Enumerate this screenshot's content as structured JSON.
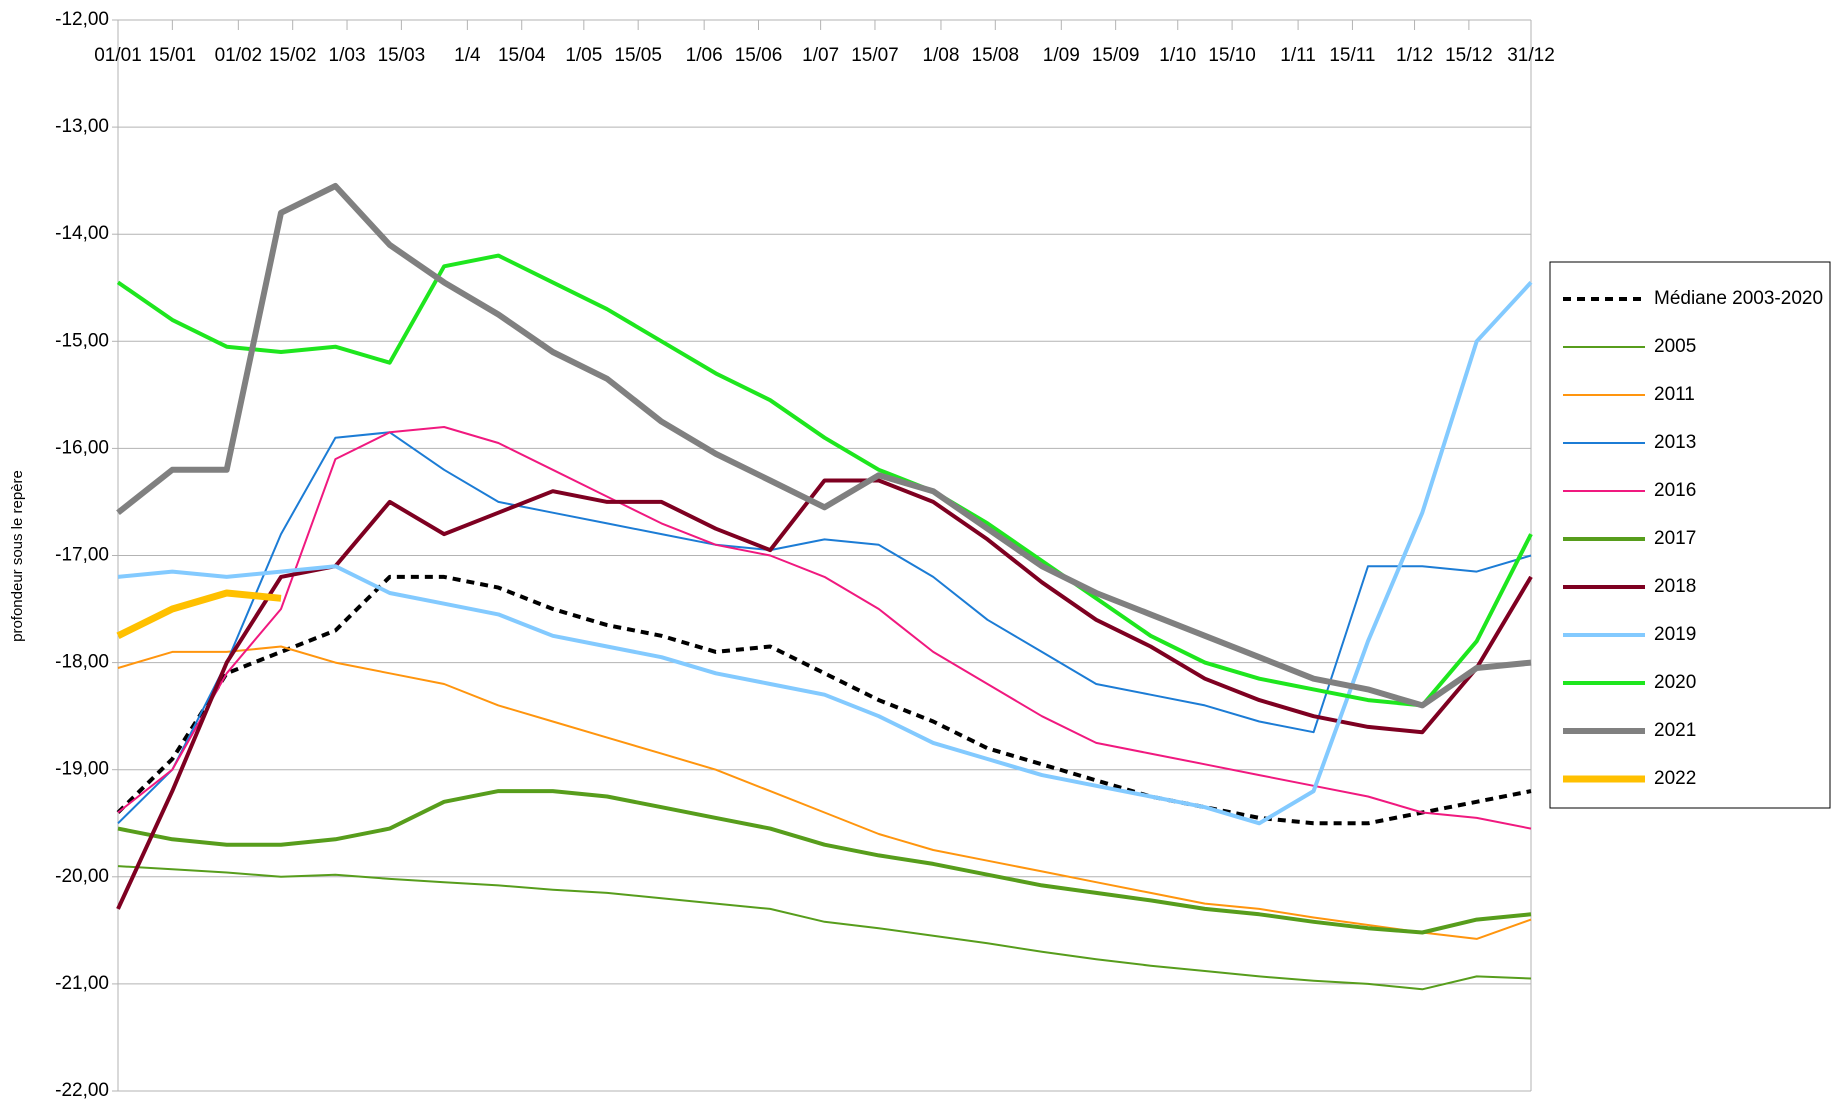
{
  "chart_data": {
    "type": "line",
    "y_label": "profondeur sous le repère",
    "xlim": [
      1,
      365
    ],
    "xticks": [
      {
        "value": 1,
        "label": "01/01"
      },
      {
        "value": 15,
        "label": "15/01"
      },
      {
        "value": 32,
        "label": "01/02"
      },
      {
        "value": 46,
        "label": "15/02"
      },
      {
        "value": 60,
        "label": "1/03"
      },
      {
        "value": 74,
        "label": "15/03"
      },
      {
        "value": 91,
        "label": "1/4"
      },
      {
        "value": 105,
        "label": "15/04"
      },
      {
        "value": 121,
        "label": "1/05"
      },
      {
        "value": 135,
        "label": "15/05"
      },
      {
        "value": 152,
        "label": "1/06"
      },
      {
        "value": 166,
        "label": "15/06"
      },
      {
        "value": 182,
        "label": "1/07"
      },
      {
        "value": 196,
        "label": "15/07"
      },
      {
        "value": 213,
        "label": "1/08"
      },
      {
        "value": 227,
        "label": "15/08"
      },
      {
        "value": 244,
        "label": "1/09"
      },
      {
        "value": 258,
        "label": "15/09"
      },
      {
        "value": 274,
        "label": "1/10"
      },
      {
        "value": 288,
        "label": "15/10"
      },
      {
        "value": 305,
        "label": "1/11"
      },
      {
        "value": 319,
        "label": "15/11"
      },
      {
        "value": 335,
        "label": "1/12"
      },
      {
        "value": 349,
        "label": "15/12"
      },
      {
        "value": 365,
        "label": "31/12"
      }
    ],
    "ylim": [
      -22,
      -12
    ],
    "yticks": [
      {
        "value": -12,
        "label": "-12,00"
      },
      {
        "value": -13,
        "label": "-13,00"
      },
      {
        "value": -14,
        "label": "-14,00"
      },
      {
        "value": -15,
        "label": "-15,00"
      },
      {
        "value": -16,
        "label": "-16,00"
      },
      {
        "value": -17,
        "label": "-17,00"
      },
      {
        "value": -18,
        "label": "-18,00"
      },
      {
        "value": -19,
        "label": "-19,00"
      },
      {
        "value": -20,
        "label": "-20,00"
      },
      {
        "value": -21,
        "label": "-21,00"
      },
      {
        "value": -22,
        "label": "-22,00"
      }
    ],
    "grid": true,
    "legend": "right",
    "x": [
      1,
      15,
      29,
      43,
      57,
      71,
      85,
      99,
      113,
      127,
      141,
      155,
      169,
      183,
      197,
      211,
      225,
      239,
      253,
      267,
      281,
      295,
      309,
      323,
      337,
      351,
      365
    ],
    "series": [
      {
        "name": "Médiane 2003-2020",
        "color": "#000000",
        "values": [
          -19.4,
          -18.9,
          -18.1,
          -17.9,
          -17.7,
          -17.2,
          -17.2,
          -17.3,
          -17.5,
          -17.65,
          -17.75,
          -17.9,
          -17.85,
          -18.1,
          -18.35,
          -18.55,
          -18.8,
          -18.95,
          -19.1,
          -19.25,
          -19.35,
          -19.45,
          -19.5,
          -19.5,
          -19.4,
          -19.3,
          -19.2
        ]
      },
      {
        "name": "2005",
        "color": "#579d1c",
        "values": [
          -19.9,
          -19.93,
          -19.96,
          -20.0,
          -19.98,
          -20.02,
          -20.05,
          -20.08,
          -20.12,
          -20.15,
          -20.2,
          -20.25,
          -20.3,
          -20.42,
          -20.48,
          -20.55,
          -20.62,
          -20.7,
          -20.77,
          -20.83,
          -20.88,
          -20.93,
          -20.97,
          -21.0,
          -21.05,
          -20.93,
          -20.95
        ]
      },
      {
        "name": "2011",
        "color": "#ff950e",
        "values": [
          -18.05,
          -17.9,
          -17.9,
          -17.85,
          -18.0,
          -18.1,
          -18.2,
          -18.4,
          -18.55,
          -18.7,
          -18.85,
          -19.0,
          -19.2,
          -19.4,
          -19.6,
          -19.75,
          -19.85,
          -19.95,
          -20.05,
          -20.15,
          -20.25,
          -20.3,
          -20.38,
          -20.45,
          -20.52,
          -20.58,
          -20.4
        ]
      },
      {
        "name": "2013",
        "color": "#1c7cd5",
        "values": [
          -19.5,
          -19.0,
          -18.0,
          -16.8,
          -15.9,
          -15.85,
          -16.2,
          -16.5,
          -16.6,
          -16.7,
          -16.8,
          -16.9,
          -16.95,
          -16.85,
          -16.9,
          -17.2,
          -17.6,
          -17.9,
          -18.2,
          -18.3,
          -18.4,
          -18.55,
          -18.65,
          -17.1,
          -17.1,
          -17.15,
          -17.0
        ]
      },
      {
        "name": "2016",
        "color": "#f0197f",
        "values": [
          -19.4,
          -19.0,
          -18.1,
          -17.5,
          -16.1,
          -15.85,
          -15.8,
          -15.95,
          -16.2,
          -16.45,
          -16.7,
          -16.9,
          -17.0,
          -17.2,
          -17.5,
          -17.9,
          -18.2,
          -18.5,
          -18.75,
          -18.85,
          -18.95,
          -19.05,
          -19.15,
          -19.25,
          -19.4,
          -19.45,
          -19.55
        ]
      },
      {
        "name": "2017",
        "color": "#579d1c",
        "values": [
          -19.55,
          -19.65,
          -19.7,
          -19.7,
          -19.65,
          -19.55,
          -19.3,
          -19.2,
          -19.2,
          -19.25,
          -19.35,
          -19.45,
          -19.55,
          -19.7,
          -19.8,
          -19.88,
          -19.98,
          -20.08,
          -20.15,
          -20.22,
          -20.3,
          -20.35,
          -20.42,
          -20.48,
          -20.52,
          -20.4,
          -20.35
        ]
      },
      {
        "name": "2018",
        "color": "#7e0021",
        "values": [
          -20.3,
          -19.2,
          -18.0,
          -17.2,
          -17.1,
          -16.5,
          -16.8,
          -16.6,
          -16.4,
          -16.5,
          -16.5,
          -16.75,
          -16.95,
          -16.3,
          -16.3,
          -16.5,
          -16.85,
          -17.25,
          -17.6,
          -17.85,
          -18.15,
          -18.35,
          -18.5,
          -18.6,
          -18.65,
          -18.05,
          -17.2
        ]
      },
      {
        "name": "2019",
        "color": "#83caff",
        "values": [
          -17.2,
          -17.15,
          -17.2,
          -17.15,
          -17.1,
          -17.35,
          -17.45,
          -17.55,
          -17.75,
          -17.85,
          -17.95,
          -18.1,
          -18.2,
          -18.3,
          -18.5,
          -18.75,
          -18.9,
          -19.05,
          -19.15,
          -19.25,
          -19.35,
          -19.5,
          -19.2,
          -17.8,
          -16.6,
          -15.0,
          -14.45
        ]
      },
      {
        "name": "2020",
        "color": "#1ee61e",
        "values": [
          -14.45,
          -14.8,
          -15.05,
          -15.1,
          -15.05,
          -15.2,
          -14.3,
          -14.2,
          -14.45,
          -14.7,
          -15.0,
          -15.3,
          -15.55,
          -15.9,
          -16.2,
          -16.4,
          -16.7,
          -17.05,
          -17.4,
          -17.75,
          -18.0,
          -18.15,
          -18.25,
          -18.35,
          -18.4,
          -17.8,
          -16.8
        ]
      },
      {
        "name": "2021",
        "color": "#808080",
        "values": [
          -16.6,
          -16.2,
          -16.2,
          -13.8,
          -13.55,
          -14.1,
          -14.45,
          -14.75,
          -15.1,
          -15.35,
          -15.75,
          -16.05,
          -16.3,
          -16.55,
          -16.25,
          -16.4,
          -16.75,
          -17.1,
          -17.35,
          -17.55,
          -17.75,
          -17.95,
          -18.15,
          -18.25,
          -18.4,
          -18.05,
          -18.0
        ]
      },
      {
        "name": "2022",
        "color": "#ffc000",
        "values": [
          -17.75,
          -17.5,
          -17.35,
          -17.4,
          null,
          null,
          null,
          null,
          null,
          null,
          null,
          null,
          null,
          null,
          null,
          null,
          null,
          null,
          null,
          null,
          null,
          null,
          null,
          null,
          null,
          null,
          null
        ]
      }
    ]
  }
}
